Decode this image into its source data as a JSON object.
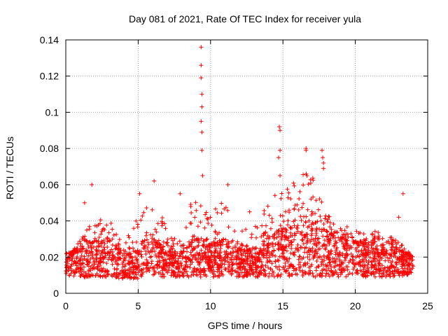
{
  "chart_data": {
    "type": "scatter",
    "title": "Day 081 of 2021, Rate Of TEC Index for receiver yula",
    "xlabel": "GPS time / hours",
    "ylabel": "ROTI / TECUs",
    "xlim": [
      0,
      25
    ],
    "ylim": [
      0,
      0.14
    ],
    "x_ticks": [
      0,
      5,
      10,
      15,
      20,
      25
    ],
    "x_tick_labels": [
      "0",
      "5",
      "10",
      "15",
      "20",
      "25"
    ],
    "y_ticks": [
      0,
      0.02,
      0.04,
      0.06,
      0.08,
      0.1,
      0.12,
      0.14
    ],
    "y_tick_labels": [
      "0",
      "0.02",
      "0.04",
      "0.06",
      "0.08",
      "0.1",
      "0.12",
      "0.14"
    ],
    "grid": true,
    "marker": "+",
    "color": "#ff0000",
    "data_range_hours": [
      0,
      24
    ],
    "series": [
      {
        "name": "ROTI",
        "envelope": {
          "hours": [
            0,
            1,
            2,
            3,
            4,
            5,
            6,
            7,
            8,
            9,
            10,
            11,
            12,
            13,
            14,
            15,
            16,
            17,
            18,
            19,
            20,
            21,
            22,
            23,
            24
          ],
          "low": [
            0.01,
            0.009,
            0.009,
            0.009,
            0.008,
            0.008,
            0.009,
            0.009,
            0.009,
            0.009,
            0.009,
            0.009,
            0.009,
            0.009,
            0.009,
            0.009,
            0.009,
            0.009,
            0.009,
            0.009,
            0.009,
            0.009,
            0.009,
            0.009,
            0.01
          ],
          "core": [
            0.022,
            0.024,
            0.03,
            0.03,
            0.02,
            0.024,
            0.03,
            0.024,
            0.022,
            0.03,
            0.026,
            0.03,
            0.024,
            0.024,
            0.03,
            0.036,
            0.036,
            0.038,
            0.034,
            0.03,
            0.028,
            0.028,
            0.026,
            0.024,
            0.02
          ],
          "spread": [
            0.014,
            0.032,
            0.04,
            0.046,
            0.026,
            0.046,
            0.05,
            0.04,
            0.04,
            0.056,
            0.046,
            0.052,
            0.036,
            0.036,
            0.05,
            0.062,
            0.066,
            0.066,
            0.044,
            0.038,
            0.036,
            0.036,
            0.032,
            0.03,
            0.02
          ]
        },
        "outliers": [
          {
            "x": 1.8,
            "y": 0.06
          },
          {
            "x": 1.3,
            "y": 0.05
          },
          {
            "x": 5.1,
            "y": 0.055
          },
          {
            "x": 6.1,
            "y": 0.062
          },
          {
            "x": 7.9,
            "y": 0.055
          },
          {
            "x": 9.35,
            "y": 0.136
          },
          {
            "x": 9.35,
            "y": 0.126
          },
          {
            "x": 9.35,
            "y": 0.119
          },
          {
            "x": 9.4,
            "y": 0.11
          },
          {
            "x": 9.4,
            "y": 0.103
          },
          {
            "x": 9.35,
            "y": 0.095
          },
          {
            "x": 9.4,
            "y": 0.089
          },
          {
            "x": 9.4,
            "y": 0.079
          },
          {
            "x": 9.45,
            "y": 0.065
          },
          {
            "x": 11.2,
            "y": 0.06
          },
          {
            "x": 14.75,
            "y": 0.092
          },
          {
            "x": 14.8,
            "y": 0.09
          },
          {
            "x": 14.8,
            "y": 0.079
          },
          {
            "x": 14.7,
            "y": 0.075
          },
          {
            "x": 14.8,
            "y": 0.065
          },
          {
            "x": 16.6,
            "y": 0.08
          },
          {
            "x": 16.6,
            "y": 0.079
          },
          {
            "x": 17.7,
            "y": 0.079
          },
          {
            "x": 17.75,
            "y": 0.075
          },
          {
            "x": 17.8,
            "y": 0.072
          },
          {
            "x": 17.8,
            "y": 0.069
          },
          {
            "x": 23.3,
            "y": 0.055
          },
          {
            "x": 23.0,
            "y": 0.042
          },
          {
            "x": 12.7,
            "y": 0.045
          }
        ]
      }
    ]
  }
}
